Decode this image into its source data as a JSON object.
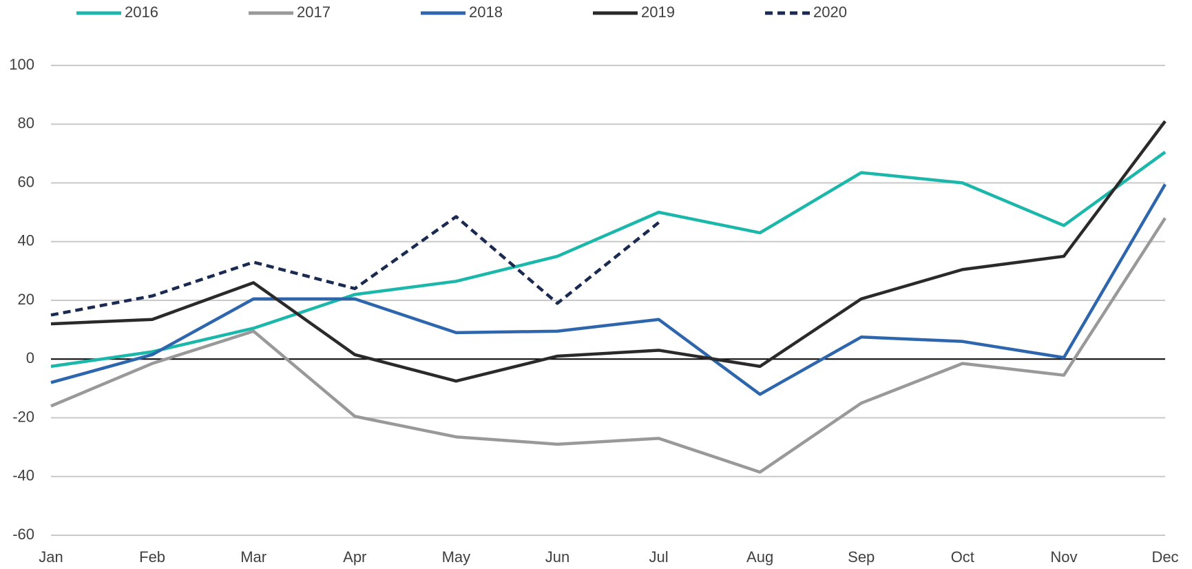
{
  "chart_data": {
    "type": "line",
    "categories": [
      "Jan",
      "Feb",
      "Mar",
      "Apr",
      "May",
      "Jun",
      "Jul",
      "Aug",
      "Sep",
      "Oct",
      "Nov",
      "Dec"
    ],
    "series": [
      {
        "name": "2016",
        "color": "#1ab7aa",
        "values": [
          -2.5,
          2.5,
          10.5,
          22,
          26.5,
          35,
          50,
          43,
          63.5,
          60,
          45.5,
          70.5
        ]
      },
      {
        "name": "2017",
        "color": "#999999",
        "values": [
          -16,
          -1.5,
          9.5,
          -19.5,
          -26.5,
          -29,
          -27,
          -38.5,
          -15,
          -1.5,
          -5.5,
          48
        ]
      },
      {
        "name": "2018",
        "color": "#2e66ad",
        "values": [
          -8,
          1.5,
          20.5,
          20.5,
          9,
          9.5,
          13.5,
          -12,
          7.5,
          6,
          0.5,
          59.5
        ]
      },
      {
        "name": "2019",
        "color": "#2a2a2a",
        "values": [
          12,
          13.5,
          26,
          1.5,
          -7.5,
          1,
          3,
          -2.5,
          20.5,
          30.5,
          35,
          81
        ]
      },
      {
        "name": "2020",
        "color": "#1a2a50",
        "dashed": true,
        "values": [
          15,
          21.5,
          33,
          24,
          48.5,
          19,
          46.5,
          null,
          null,
          null,
          null,
          null
        ]
      }
    ],
    "ylim": [
      -60,
      100
    ],
    "yticks": [
      -60,
      -40,
      -20,
      0,
      20,
      40,
      60,
      80,
      100
    ],
    "grid": true,
    "legend": "top"
  }
}
